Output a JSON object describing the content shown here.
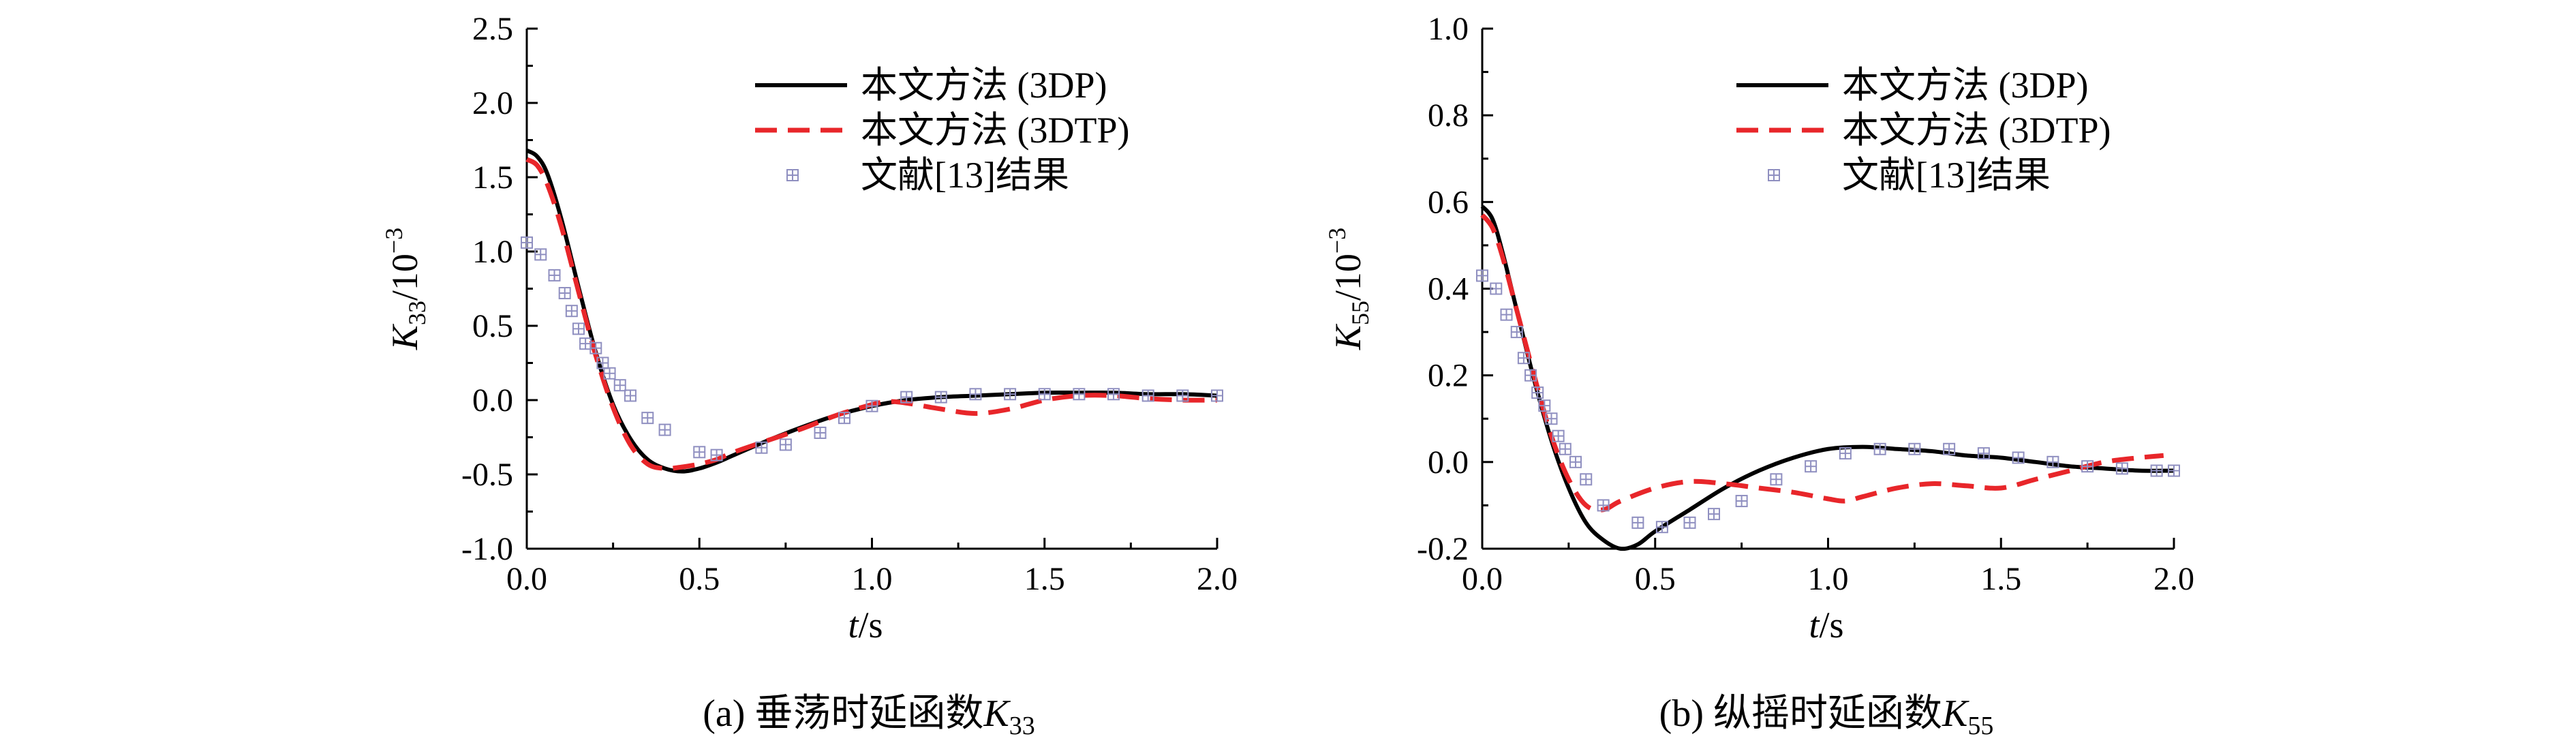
{
  "chart_data": [
    {
      "id": "a",
      "type": "line",
      "caption_prefix": "(a) 垂荡时延函数",
      "caption_symbol": "K",
      "caption_sub": "33",
      "xlabel_var": "t",
      "xlabel_unit": "/s",
      "ylabel_var": "K",
      "ylabel_sub": "33",
      "ylabel_unit": "/10",
      "ylabel_sup": "−3",
      "xlim": [
        0,
        2
      ],
      "ylim": [
        -1,
        2.5
      ],
      "xticks": [
        0,
        0.5,
        1,
        1.5,
        2
      ],
      "xtick_labels": [
        "0.0",
        "0.5",
        "1.0",
        "1.5",
        "2.0"
      ],
      "yticks": [
        -1,
        -0.5,
        0,
        0.5,
        1,
        1.5,
        2,
        2.5
      ],
      "ytick_labels": [
        "-1.0",
        "-0.5",
        "0.0",
        "0.5",
        "1.0",
        "1.5",
        "2.0",
        "2.5"
      ],
      "series": [
        {
          "name": "本文方法 (3DP)",
          "style": "solid",
          "color": "#000000",
          "x": [
            0,
            0.03,
            0.06,
            0.1,
            0.15,
            0.2,
            0.25,
            0.3,
            0.35,
            0.4,
            0.45,
            0.5,
            0.55,
            0.6,
            0.7,
            0.8,
            0.9,
            1.0,
            1.1,
            1.2,
            1.3,
            1.4,
            1.5,
            1.6,
            1.7,
            1.8,
            1.9,
            2.0
          ],
          "y": [
            1.68,
            1.64,
            1.52,
            1.22,
            0.76,
            0.32,
            -0.03,
            -0.26,
            -0.4,
            -0.46,
            -0.48,
            -0.46,
            -0.42,
            -0.37,
            -0.27,
            -0.18,
            -0.1,
            -0.04,
            0.0,
            0.02,
            0.03,
            0.04,
            0.05,
            0.05,
            0.05,
            0.04,
            0.04,
            0.03
          ]
        },
        {
          "name": "本文方法 (3DTP)",
          "style": "dashed",
          "color": "#e8262a",
          "x": [
            0,
            0.03,
            0.06,
            0.1,
            0.15,
            0.2,
            0.25,
            0.3,
            0.35,
            0.4,
            0.45,
            0.5,
            0.55,
            0.6,
            0.7,
            0.8,
            0.9,
            1.0,
            1.05,
            1.1,
            1.2,
            1.3,
            1.4,
            1.5,
            1.6,
            1.7,
            1.8,
            1.9,
            2.0
          ],
          "y": [
            1.62,
            1.58,
            1.45,
            1.17,
            0.73,
            0.3,
            -0.05,
            -0.3,
            -0.43,
            -0.46,
            -0.45,
            -0.43,
            -0.4,
            -0.35,
            -0.27,
            -0.19,
            -0.1,
            -0.03,
            -0.01,
            -0.02,
            -0.06,
            -0.09,
            -0.06,
            0.0,
            0.03,
            0.03,
            0.01,
            0.0,
            0.0
          ]
        },
        {
          "name": "文献[13]结果",
          "style": "marker",
          "color": "#8f8fc0",
          "x": [
            0,
            0.04,
            0.08,
            0.11,
            0.13,
            0.15,
            0.17,
            0.2,
            0.22,
            0.24,
            0.27,
            0.3,
            0.35,
            0.4,
            0.5,
            0.55,
            0.68,
            0.75,
            0.85,
            0.92,
            1.0,
            1.1,
            1.2,
            1.3,
            1.4,
            1.5,
            1.6,
            1.7,
            1.8,
            1.9,
            2.0
          ],
          "y": [
            1.06,
            0.98,
            0.84,
            0.72,
            0.6,
            0.48,
            0.38,
            0.35,
            0.25,
            0.18,
            0.1,
            0.03,
            -0.12,
            -0.2,
            -0.35,
            -0.37,
            -0.32,
            -0.3,
            -0.22,
            -0.12,
            -0.04,
            0.02,
            0.02,
            0.04,
            0.04,
            0.04,
            0.04,
            0.04,
            0.03,
            0.03,
            0.03
          ]
        }
      ]
    },
    {
      "id": "b",
      "type": "line",
      "caption_prefix": "(b) 纵摇时延函数",
      "caption_symbol": "K",
      "caption_sub": "55",
      "xlabel_var": "t",
      "xlabel_unit": "/s",
      "ylabel_var": "K",
      "ylabel_sub": "55",
      "ylabel_unit": "/10",
      "ylabel_sup": "−3",
      "xlim": [
        0,
        2
      ],
      "ylim": [
        -0.2,
        1
      ],
      "xticks": [
        0,
        0.5,
        1,
        1.5,
        2
      ],
      "xtick_labels": [
        "0.0",
        "0.5",
        "1.0",
        "1.5",
        "2.0"
      ],
      "yticks": [
        -0.2,
        0,
        0.2,
        0.4,
        0.6,
        0.8,
        1
      ],
      "ytick_labels": [
        "-0.2",
        "0.0",
        "0.2",
        "0.4",
        "0.6",
        "0.8",
        "1.0"
      ],
      "series": [
        {
          "name": "本文方法 (3DP)",
          "style": "solid",
          "color": "#000000",
          "x": [
            0,
            0.03,
            0.06,
            0.1,
            0.15,
            0.2,
            0.25,
            0.3,
            0.35,
            0.4,
            0.45,
            0.5,
            0.6,
            0.7,
            0.8,
            0.9,
            1.0,
            1.1,
            1.2,
            1.3,
            1.4,
            1.5,
            1.6,
            1.7,
            1.8,
            1.9,
            2.0
          ],
          "y": [
            0.59,
            0.56,
            0.48,
            0.35,
            0.19,
            0.05,
            -0.06,
            -0.14,
            -0.18,
            -0.2,
            -0.19,
            -0.16,
            -0.11,
            -0.06,
            -0.02,
            0.01,
            0.03,
            0.035,
            0.03,
            0.025,
            0.015,
            0.01,
            0.0,
            -0.01,
            -0.015,
            -0.02,
            -0.02
          ]
        },
        {
          "name": "本文方法 (3DTP)",
          "style": "dashed",
          "color": "#e8262a",
          "x": [
            0,
            0.03,
            0.06,
            0.1,
            0.15,
            0.2,
            0.25,
            0.3,
            0.35,
            0.4,
            0.5,
            0.6,
            0.7,
            0.8,
            0.9,
            1.0,
            1.05,
            1.1,
            1.2,
            1.3,
            1.4,
            1.5,
            1.6,
            1.7,
            1.8,
            1.9,
            1.97
          ],
          "y": [
            0.57,
            0.54,
            0.47,
            0.35,
            0.2,
            0.06,
            -0.04,
            -0.1,
            -0.11,
            -0.09,
            -0.06,
            -0.045,
            -0.05,
            -0.06,
            -0.07,
            -0.085,
            -0.09,
            -0.08,
            -0.06,
            -0.05,
            -0.055,
            -0.06,
            -0.04,
            -0.02,
            0.0,
            0.01,
            0.015
          ]
        },
        {
          "name": "文献[13]结果",
          "style": "marker",
          "color": "#8f8fc0",
          "x": [
            0,
            0.04,
            0.07,
            0.1,
            0.12,
            0.14,
            0.16,
            0.18,
            0.2,
            0.22,
            0.24,
            0.27,
            0.3,
            0.35,
            0.45,
            0.52,
            0.6,
            0.67,
            0.75,
            0.85,
            0.95,
            1.05,
            1.15,
            1.25,
            1.35,
            1.45,
            1.55,
            1.65,
            1.75,
            1.85,
            1.95,
            2.0
          ],
          "y": [
            0.43,
            0.4,
            0.34,
            0.3,
            0.24,
            0.2,
            0.16,
            0.13,
            0.1,
            0.06,
            0.03,
            0.0,
            -0.04,
            -0.1,
            -0.14,
            -0.15,
            -0.14,
            -0.12,
            -0.09,
            -0.04,
            -0.01,
            0.02,
            0.03,
            0.03,
            0.03,
            0.02,
            0.01,
            0.0,
            -0.01,
            -0.015,
            -0.02,
            -0.02
          ]
        }
      ]
    }
  ]
}
